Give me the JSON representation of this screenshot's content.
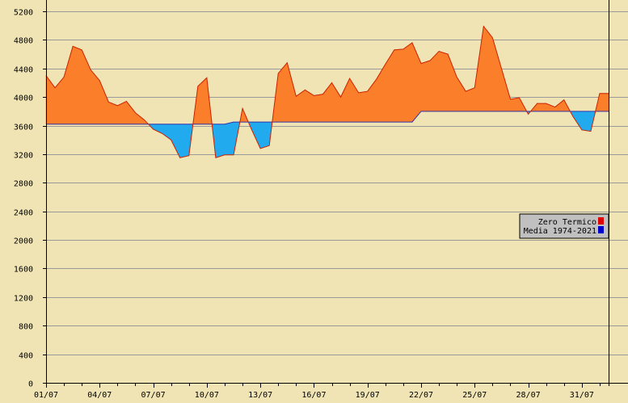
{
  "chart_data": {
    "type": "area",
    "title": "",
    "xlabel": "",
    "ylabel": "",
    "ylim": [
      0,
      5200
    ],
    "yticks": [
      0,
      400,
      800,
      1200,
      1600,
      2000,
      2400,
      2800,
      3200,
      3600,
      4000,
      4400,
      4800,
      5200
    ],
    "xtick_labels": [
      "01/07",
      "04/07",
      "07/07",
      "10/07",
      "13/07",
      "16/07",
      "19/07",
      "22/07",
      "25/07",
      "28/07",
      "31/07"
    ],
    "grid": true,
    "legend_position": "right",
    "colors": {
      "background": "#f0e4b4",
      "above": "#fb7f2a",
      "below": "#22aaee",
      "zero_line": "#cc2200",
      "media_line": "#3333aa",
      "grid": "#9a9a9a"
    },
    "series": [
      {
        "name": "Zero Termico",
        "color": "#dd0000",
        "values": [
          4300,
          4130,
          4280,
          4710,
          4660,
          4380,
          4230,
          3930,
          3880,
          3940,
          3780,
          3680,
          3550,
          3490,
          3400,
          3150,
          3180,
          4150,
          4270,
          3150,
          3190,
          3190,
          3840,
          3550,
          3280,
          3320,
          4330,
          4480,
          4010,
          4100,
          4020,
          4040,
          4200,
          4000,
          4260,
          4060,
          4080,
          4250,
          4460,
          4660,
          4670,
          4760,
          4470,
          4510,
          4640,
          4600,
          4280,
          4080,
          4130,
          4990,
          4830,
          4400,
          3970,
          3990,
          3760,
          3910,
          3910,
          3860,
          3960,
          3730,
          3540,
          3520,
          4050,
          4050
        ]
      },
      {
        "name": "Media 1974-2021",
        "color": "#0000cc",
        "values": [
          3620,
          3620,
          3620,
          3620,
          3620,
          3620,
          3620,
          3620,
          3620,
          3620,
          3620,
          3620,
          3620,
          3620,
          3620,
          3620,
          3620,
          3620,
          3620,
          3620,
          3620,
          3650,
          3650,
          3650,
          3650,
          3650,
          3650,
          3650,
          3650,
          3650,
          3650,
          3650,
          3650,
          3650,
          3650,
          3650,
          3650,
          3650,
          3650,
          3650,
          3650,
          3650,
          3800,
          3800,
          3800,
          3800,
          3800,
          3800,
          3800,
          3800,
          3800,
          3800,
          3800,
          3800,
          3800,
          3800,
          3800,
          3800,
          3800,
          3800,
          3800,
          3800,
          3800,
          3800
        ]
      }
    ]
  }
}
